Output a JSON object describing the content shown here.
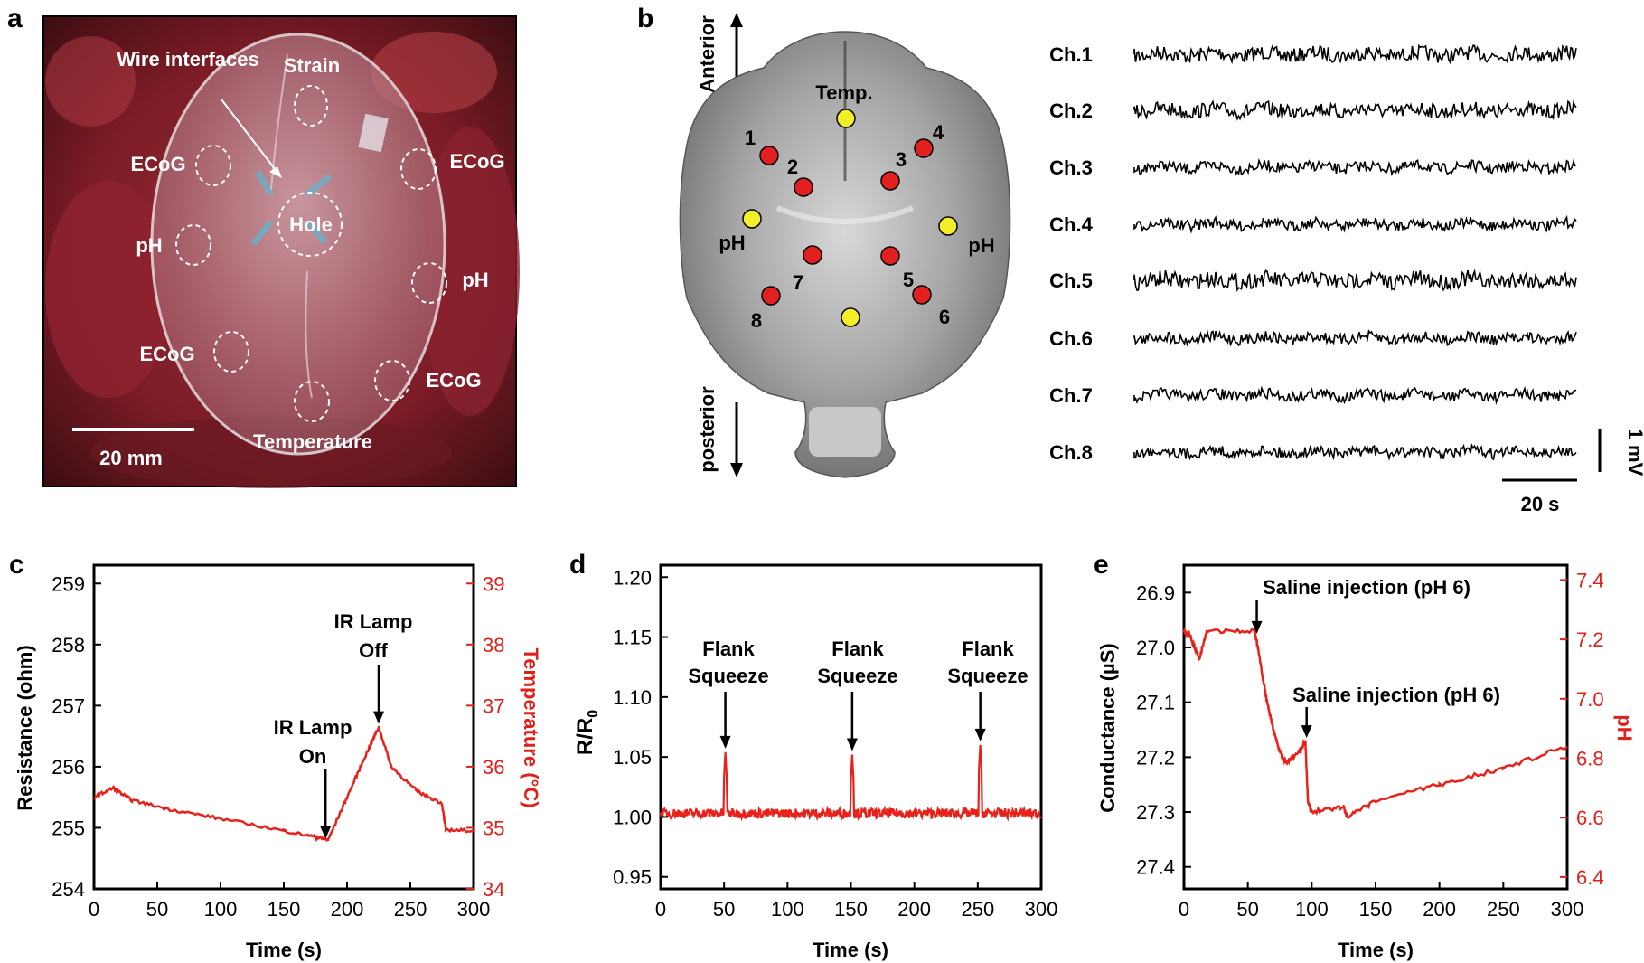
{
  "colors": {
    "trace_red": "#e8221b",
    "axis_red": "#e0211b",
    "ink": "#000000",
    "dot_red": "#e41f1f",
    "dot_yellow": "#f2ee2a"
  },
  "panel_a": {
    "label": "a",
    "annotations": [
      "Wire interfaces",
      "Strain",
      "ECoG",
      "ECoG",
      "pH",
      "Hole",
      "pH",
      "ECoG",
      "ECoG",
      "Temperature"
    ],
    "scalebar_label": "20 mm"
  },
  "panel_b": {
    "label": "b",
    "anterior": "Anterior",
    "posterior": "posterior",
    "temp_label": "Temp.",
    "ph_left": "pH",
    "ph_right": "pH",
    "electrodes": [
      "1",
      "2",
      "3",
      "4",
      "5",
      "6",
      "7",
      "8"
    ],
    "scale_voltage": "1 mV",
    "scale_time": "20 s"
  },
  "chart_data": [
    {
      "type": "line",
      "panel": "b",
      "series": [
        {
          "name": "Ch.1"
        },
        {
          "name": "Ch.2"
        },
        {
          "name": "Ch.3"
        },
        {
          "name": "Ch.4"
        },
        {
          "name": "Ch.5"
        },
        {
          "name": "Ch.6"
        },
        {
          "name": "Ch.7"
        },
        {
          "name": "Ch.8"
        }
      ]
    },
    {
      "type": "line",
      "panel": "c",
      "label": "c",
      "xlabel": "Time (s)",
      "ylabel": "Resistance (ohm)",
      "y2label": "Temperature (°C)",
      "xlim": [
        0,
        300
      ],
      "ylim": [
        254,
        259.3
      ],
      "y2lim": [
        34,
        39.3
      ],
      "xticks": [
        "0",
        "50",
        "100",
        "150",
        "200",
        "250",
        "300"
      ],
      "yticks": [
        "254",
        "255",
        "256",
        "257",
        "258",
        "259"
      ],
      "y2ticks": [
        "34",
        "35",
        "36",
        "37",
        "38",
        "39"
      ],
      "x": [
        0,
        15,
        30,
        60,
        100,
        150,
        175,
        185,
        200,
        215,
        225,
        235,
        255,
        275,
        278,
        300
      ],
      "y": [
        255.5,
        255.65,
        255.45,
        255.3,
        255.15,
        254.95,
        254.85,
        254.8,
        255.5,
        256.2,
        256.65,
        256.0,
        255.6,
        255.4,
        254.97,
        254.95
      ],
      "annotations": [
        {
          "text": "IR Lamp",
          "text2": "On",
          "x": 183
        },
        {
          "text": "IR Lamp",
          "text2": "Off",
          "x": 225
        }
      ]
    },
    {
      "type": "line",
      "panel": "d",
      "label": "d",
      "xlabel": "Time (s)",
      "xlim": [
        0,
        300
      ],
      "ylim": [
        0.94,
        1.21
      ],
      "xticks": [
        "0",
        "50",
        "100",
        "150",
        "200",
        "250",
        "300"
      ],
      "yticks": [
        "0.95",
        "1.00",
        "1.05",
        "1.10",
        "1.15",
        "1.20"
      ],
      "baseline": 1.003,
      "peaks": [
        {
          "x": 51,
          "y": 1.054
        },
        {
          "x": 151,
          "y": 1.052
        },
        {
          "x": 252,
          "y": 1.06
        }
      ],
      "annotations": [
        {
          "text": "Flank",
          "text2": "Squeeze",
          "x": 51
        },
        {
          "text": "Flank",
          "text2": "Squeeze",
          "x": 151
        },
        {
          "text": "Flank",
          "text2": "Squeeze",
          "x": 252
        }
      ]
    },
    {
      "type": "line",
      "panel": "e",
      "label": "e",
      "xlabel": "Time (s)",
      "ylabel": "Conductance (µS)",
      "y2label": "pH",
      "xlim": [
        0,
        300
      ],
      "ylim": [
        26.85,
        27.44
      ],
      "y2lim": [
        6.36,
        7.45
      ],
      "xticks": [
        "0",
        "50",
        "100",
        "150",
        "200",
        "250",
        "300"
      ],
      "yticks": [
        "26.9",
        "27.0",
        "27.1",
        "27.2",
        "27.3",
        "27.4"
      ],
      "y2ticks": [
        "6.4",
        "6.6",
        "6.8",
        "7.0",
        "7.2",
        "7.4"
      ],
      "x": [
        0,
        5,
        12,
        18,
        55,
        58,
        65,
        70,
        75,
        80,
        90,
        95,
        97,
        100,
        125,
        128,
        150,
        200,
        250,
        300
      ],
      "y": [
        26.97,
        26.98,
        27.02,
        26.97,
        26.97,
        27.0,
        27.1,
        27.15,
        27.19,
        27.21,
        27.19,
        27.17,
        27.28,
        27.3,
        27.29,
        27.31,
        27.28,
        27.25,
        27.22,
        27.18
      ],
      "annotations": [
        {
          "text": "Saline injection (pH 6)",
          "x": 57
        },
        {
          "text": "Saline injection (pH 6)",
          "x": 96
        }
      ]
    }
  ]
}
